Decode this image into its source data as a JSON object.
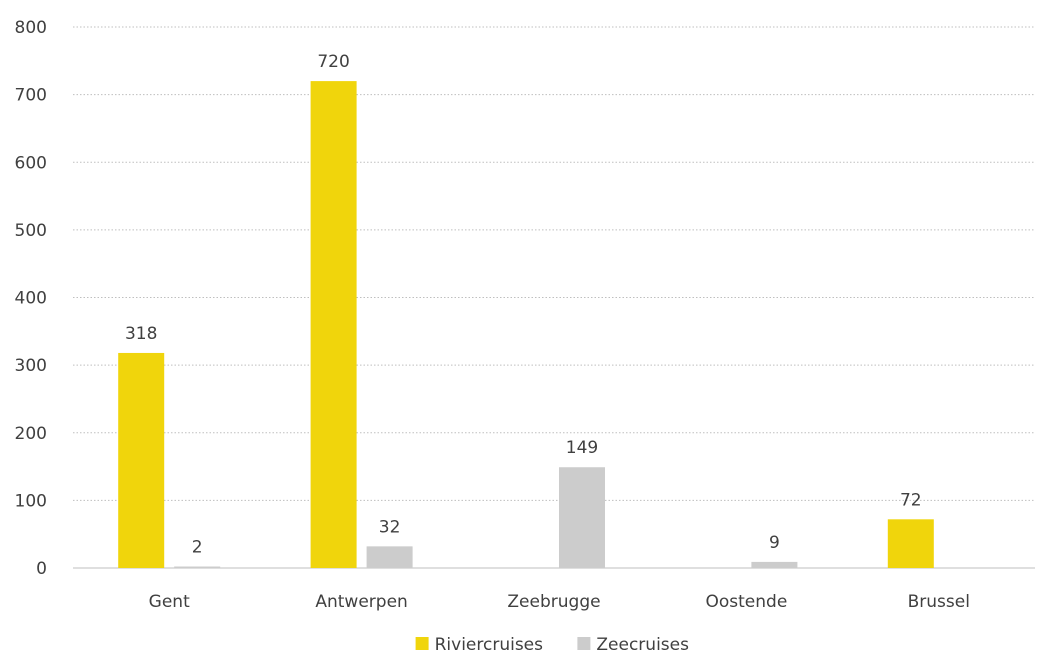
{
  "chart_data": {
    "type": "bar",
    "title": "",
    "xlabel": "",
    "ylabel": "",
    "ylim": [
      0,
      800
    ],
    "yticks": [
      0,
      100,
      200,
      300,
      400,
      500,
      600,
      700,
      800
    ],
    "grid": true,
    "legend_position": "bottom",
    "categories": [
      "Gent",
      "Antwerpen",
      "Zeebrugge",
      "Oostende",
      "Brussel"
    ],
    "series": [
      {
        "name": "Riviercruises",
        "color": "#f0d50c",
        "values": [
          318,
          720,
          0,
          0,
          72
        ],
        "labels": [
          "318",
          "720",
          "",
          "",
          "72"
        ]
      },
      {
        "name": "Zeecruises",
        "color": "#cccccc",
        "values": [
          2,
          32,
          149,
          9,
          0
        ],
        "labels": [
          "2",
          "32",
          "149",
          "9",
          ""
        ]
      }
    ]
  }
}
